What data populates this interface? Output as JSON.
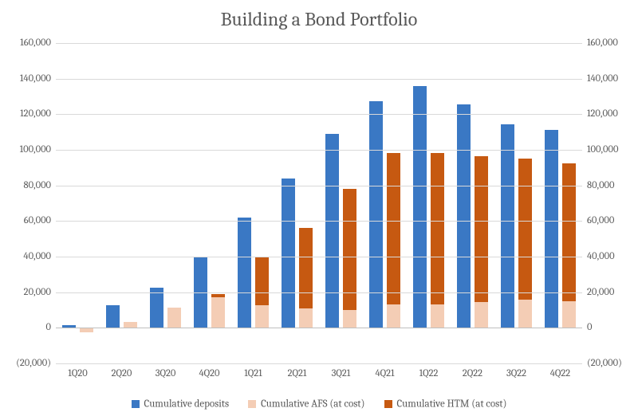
{
  "chart": {
    "type": "bar-grouped-stacked",
    "title": "Building a Bond Portfolio",
    "title_fontsize": 24,
    "title_color": "#595959",
    "background_color": "#ffffff",
    "font_family": "Georgia, Cambria, Times New Roman, serif",
    "axis_label_fontsize": 12.5,
    "axis_label_color": "#595959",
    "grid_color": "#d9d9d9",
    "ymin": -20000,
    "ymax": 160000,
    "ytick_step": 20000,
    "yticks": [
      -20000,
      0,
      20000,
      40000,
      60000,
      80000,
      100000,
      120000,
      140000,
      160000
    ],
    "ytick_labels": [
      "(20,000)",
      "0",
      "20,000",
      "40,000",
      "60,000",
      "80,000",
      "100,000",
      "120,000",
      "140,000",
      "160,000"
    ],
    "mirror_right_axis": true,
    "legend_fontsize": 13,
    "bar_gap_within_group": 0.1,
    "group_padding": 0.15,
    "categories": [
      "1Q20",
      "2Q20",
      "3Q20",
      "4Q20",
      "1Q21",
      "2Q21",
      "3Q21",
      "4Q21",
      "1Q22",
      "2Q22",
      "3Q22",
      "4Q22"
    ],
    "series": [
      {
        "key": "deposits",
        "label": "Cumulative deposits",
        "color": "#3a78c4",
        "role": "standalone"
      },
      {
        "key": "afs",
        "label": "Cumulative AFS (at cost)",
        "color": "#f4cdb5",
        "role": "stack-base"
      },
      {
        "key": "htm",
        "label": "Cumulative HTM (at cost)",
        "color": "#c65911",
        "role": "stack-top"
      }
    ],
    "values": {
      "deposits": [
        1500,
        12500,
        22500,
        40000,
        62000,
        84000,
        109000,
        127500,
        136000,
        125500,
        114500,
        111000
      ],
      "afs": [
        -2500,
        3500,
        11500,
        17000,
        12500,
        11000,
        10000,
        13000,
        13000,
        14500,
        16000,
        15000
      ],
      "htm": [
        0,
        0,
        0,
        2000,
        27000,
        45000,
        68000,
        85000,
        85000,
        82000,
        79000,
        77500
      ]
    }
  }
}
